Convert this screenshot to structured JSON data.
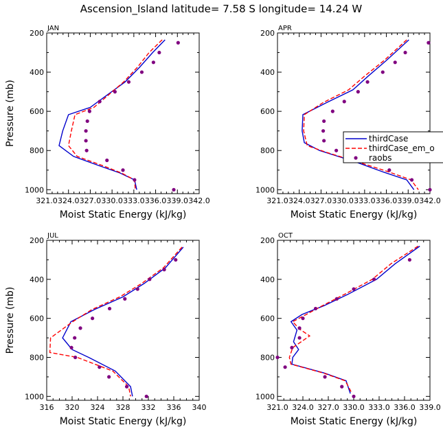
{
  "title": "Ascension_Island   latitude= 7.58 S longitude= 14.24 W",
  "chart_data": [
    {
      "type": "line",
      "panel": "JAN",
      "xlabel": "Moist Static Energy (kJ/kg)",
      "ylabel": "Pressure (mb)",
      "xlim": [
        321.0,
        342.0
      ],
      "ylim": [
        200,
        1020
      ],
      "y_inverted": true,
      "xticks": [
        321.0,
        324.0,
        327.0,
        330.0,
        333.0,
        336.0,
        339.0,
        342.0
      ],
      "xtick_labels": [
        "321.0",
        "324.0",
        "327.0",
        "330.0",
        "333.0",
        "336.0",
        "339.0",
        "342.0"
      ],
      "yticks": [
        200,
        400,
        600,
        800,
        1000
      ],
      "ytick_labels": [
        "200",
        "400",
        "600",
        "800",
        "1000"
      ],
      "series": [
        {
          "name": "thirdCase",
          "style": "line",
          "color": "#0000cc",
          "points": [
            [
              337.3,
              235
            ],
            [
              335.6,
              300
            ],
            [
              333.8,
              375
            ],
            [
              331.8,
              450
            ],
            [
              329.2,
              520
            ],
            [
              327.0,
              580
            ],
            [
              324.0,
              617
            ],
            [
              323.2,
              700
            ],
            [
              322.7,
              775
            ],
            [
              324.7,
              830
            ],
            [
              328.4,
              880
            ],
            [
              331.1,
              915
            ],
            [
              333.1,
              950
            ],
            [
              333.4,
              1000
            ]
          ]
        },
        {
          "name": "thirdCase_em_o",
          "style": "dashed",
          "color": "#ff0000",
          "points": [
            [
              336.9,
              235
            ],
            [
              335.1,
              300
            ],
            [
              333.5,
              375
            ],
            [
              331.6,
              450
            ],
            [
              329.4,
              520
            ],
            [
              327.5,
              580
            ],
            [
              324.9,
              617
            ],
            [
              324.4,
              700
            ],
            [
              324.0,
              775
            ],
            [
              325.2,
              830
            ],
            [
              328.9,
              880
            ],
            [
              331.3,
              915
            ],
            [
              333.1,
              950
            ],
            [
              333.2,
              1000
            ]
          ]
        },
        {
          "name": "raobs",
          "style": "marker",
          "color": "#800080",
          "points": [
            [
              339.1,
              250
            ],
            [
              336.5,
              300
            ],
            [
              335.7,
              350
            ],
            [
              334.1,
              400
            ],
            [
              332.3,
              450
            ],
            [
              330.4,
              500
            ],
            [
              328.3,
              550
            ],
            [
              326.9,
              600
            ],
            [
              326.6,
              650
            ],
            [
              326.4,
              700
            ],
            [
              326.4,
              750
            ],
            [
              326.5,
              800
            ],
            [
              329.3,
              850
            ],
            [
              331.5,
              900
            ],
            [
              333.1,
              950
            ],
            [
              338.5,
              1000
            ]
          ]
        }
      ]
    },
    {
      "type": "line",
      "panel": "APR",
      "xlabel": "Moist Static Energy (kJ/kg)",
      "ylabel": "",
      "xlim": [
        321.0,
        342.0
      ],
      "ylim": [
        200,
        1020
      ],
      "y_inverted": true,
      "xticks": [
        321.0,
        324.0,
        327.0,
        330.0,
        333.0,
        336.0,
        339.0,
        342.0
      ],
      "xtick_labels": [
        "321.0",
        "324.0",
        "327.0",
        "330.0",
        "333.0",
        "336.0",
        "339.0",
        "342.0"
      ],
      "yticks": [
        200,
        400,
        600,
        800,
        1000
      ],
      "ytick_labels": [
        "200",
        "400",
        "600",
        "800",
        "1000"
      ],
      "legend": {
        "placement": "right",
        "entries": [
          "thirdCase",
          "thirdCase_em_o",
          "raobs"
        ]
      },
      "series": [
        {
          "name": "thirdCase",
          "style": "line",
          "color": "#0000cc",
          "points": [
            [
              339.1,
              235
            ],
            [
              336.0,
              340
            ],
            [
              333.5,
              420
            ],
            [
              331.4,
              490
            ],
            [
              327.8,
              555
            ],
            [
              324.5,
              617
            ],
            [
              324.4,
              700
            ],
            [
              324.7,
              760
            ],
            [
              326.8,
              800
            ],
            [
              331.9,
              860
            ],
            [
              335.6,
              910
            ],
            [
              338.8,
              950
            ],
            [
              339.8,
              1000
            ]
          ]
        },
        {
          "name": "thirdCase_em_o",
          "style": "dashed",
          "color": "#ff0000",
          "points": [
            [
              338.8,
              235
            ],
            [
              335.7,
              340
            ],
            [
              333.0,
              420
            ],
            [
              330.8,
              490
            ],
            [
              327.3,
              555
            ],
            [
              324.7,
              617
            ],
            [
              324.6,
              700
            ],
            [
              325.1,
              775
            ],
            [
              327.8,
              810
            ],
            [
              332.2,
              860
            ],
            [
              336.4,
              910
            ],
            [
              339.4,
              950
            ],
            [
              340.4,
              1000
            ]
          ]
        },
        {
          "name": "raobs",
          "style": "marker",
          "color": "#800080",
          "points": [
            [
              341.8,
              250
            ],
            [
              338.6,
              300
            ],
            [
              337.2,
              350
            ],
            [
              335.5,
              400
            ],
            [
              333.4,
              450
            ],
            [
              332.1,
              500
            ],
            [
              330.2,
              550
            ],
            [
              328.6,
              600
            ],
            [
              327.4,
              650
            ],
            [
              327.3,
              700
            ],
            [
              327.4,
              750
            ],
            [
              329.1,
              800
            ],
            [
              333.7,
              850
            ],
            [
              336.4,
              900
            ],
            [
              339.5,
              950
            ],
            [
              342.0,
              1000
            ]
          ]
        }
      ]
    },
    {
      "type": "line",
      "panel": "JUL",
      "xlabel": "Moist Static Energy (kJ/kg)",
      "ylabel": "Pressure (mb)",
      "xlim": [
        316,
        340
      ],
      "ylim": [
        200,
        1020
      ],
      "y_inverted": true,
      "xticks": [
        316,
        320,
        324,
        328,
        332,
        336,
        340
      ],
      "xtick_labels": [
        "316",
        "320",
        "324",
        "328",
        "332",
        "336",
        "340"
      ],
      "yticks": [
        200,
        400,
        600,
        800,
        1000
      ],
      "ytick_labels": [
        "200",
        "400",
        "600",
        "800",
        "1000"
      ],
      "series": [
        {
          "name": "thirdCase",
          "style": "line",
          "color": "#0000cc",
          "points": [
            [
              337.5,
              235
            ],
            [
              334.7,
              340
            ],
            [
              331.4,
              420
            ],
            [
              328.0,
              490
            ],
            [
              323.5,
              555
            ],
            [
              319.8,
              617
            ],
            [
              318.5,
              700
            ],
            [
              320.0,
              760
            ],
            [
              322.6,
              800
            ],
            [
              326.8,
              870
            ],
            [
              329.2,
              950
            ],
            [
              329.5,
              1000
            ]
          ]
        },
        {
          "name": "thirdCase_em_o",
          "style": "dashed",
          "color": "#ff0000",
          "points": [
            [
              337.3,
              235
            ],
            [
              334.4,
              340
            ],
            [
              331.0,
              420
            ],
            [
              327.5,
              490
            ],
            [
              323.1,
              555
            ],
            [
              320.1,
              617
            ],
            [
              316.6,
              700
            ],
            [
              316.5,
              775
            ],
            [
              320.8,
              800
            ],
            [
              326.4,
              870
            ],
            [
              328.9,
              950
            ],
            [
              329.2,
              1000
            ]
          ]
        },
        {
          "name": "raobs",
          "style": "marker",
          "color": "#800080",
          "points": [
            [
              336.3,
              300
            ],
            [
              334.5,
              350
            ],
            [
              332.2,
              400
            ],
            [
              330.3,
              450
            ],
            [
              328.3,
              500
            ],
            [
              325.9,
              550
            ],
            [
              323.2,
              600
            ],
            [
              321.3,
              650
            ],
            [
              320.4,
              700
            ],
            [
              319.9,
              750
            ],
            [
              320.5,
              800
            ],
            [
              324.3,
              850
            ],
            [
              325.8,
              900
            ],
            [
              328.6,
              950
            ],
            [
              331.7,
              1000
            ]
          ]
        }
      ]
    },
    {
      "type": "line",
      "panel": "OCT",
      "xlabel": "Moist Static Energy (kJ/kg)",
      "ylabel": "",
      "xlim": [
        321.0,
        339.0
      ],
      "ylim": [
        200,
        1020
      ],
      "y_inverted": true,
      "xticks": [
        321.0,
        324.0,
        327.0,
        330.0,
        333.0,
        336.0,
        339.0
      ],
      "xtick_labels": [
        "321.0",
        "324.0",
        "327.0",
        "330.0",
        "333.0",
        "336.0",
        "339.0"
      ],
      "yticks": [
        200,
        400,
        600,
        800,
        1000
      ],
      "ytick_labels": [
        "200",
        "400",
        "600",
        "800",
        "1000"
      ],
      "series": [
        {
          "name": "thirdCase",
          "style": "line",
          "color": "#0000cc",
          "points": [
            [
              337.8,
              230
            ],
            [
              334.9,
              320
            ],
            [
              332.7,
              400
            ],
            [
              329.4,
              475
            ],
            [
              326.5,
              535
            ],
            [
              323.9,
              580
            ],
            [
              322.6,
              617
            ],
            [
              323.3,
              660
            ],
            [
              322.9,
              720
            ],
            [
              323.5,
              760
            ],
            [
              322.8,
              800
            ],
            [
              322.7,
              835
            ],
            [
              326.5,
              880
            ],
            [
              329.1,
              920
            ],
            [
              329.6,
              985
            ]
          ]
        },
        {
          "name": "thirdCase_em_o",
          "style": "dashed",
          "color": "#ff0000",
          "points": [
            [
              337.6,
              230
            ],
            [
              334.4,
              320
            ],
            [
              332.2,
              400
            ],
            [
              329.0,
              475
            ],
            [
              326.3,
              535
            ],
            [
              324.4,
              580
            ],
            [
              322.8,
              617
            ],
            [
              323.6,
              655
            ],
            [
              324.8,
              690
            ],
            [
              322.8,
              750
            ],
            [
              322.4,
              800
            ],
            [
              322.6,
              835
            ],
            [
              326.4,
              880
            ],
            [
              329.0,
              920
            ],
            [
              329.8,
              985
            ]
          ]
        },
        {
          "name": "raobs",
          "style": "marker",
          "color": "#800080",
          "points": [
            [
              336.6,
              300
            ],
            [
              332.4,
              400
            ],
            [
              330.0,
              450
            ],
            [
              328.0,
              500
            ],
            [
              325.5,
              550
            ],
            [
              324.0,
              600
            ],
            [
              323.6,
              650
            ],
            [
              323.6,
              700
            ],
            [
              322.7,
              750
            ],
            [
              321.0,
              800
            ],
            [
              321.9,
              850
            ],
            [
              326.6,
              900
            ],
            [
              328.6,
              950
            ],
            [
              330.0,
              1000
            ]
          ]
        }
      ]
    }
  ]
}
